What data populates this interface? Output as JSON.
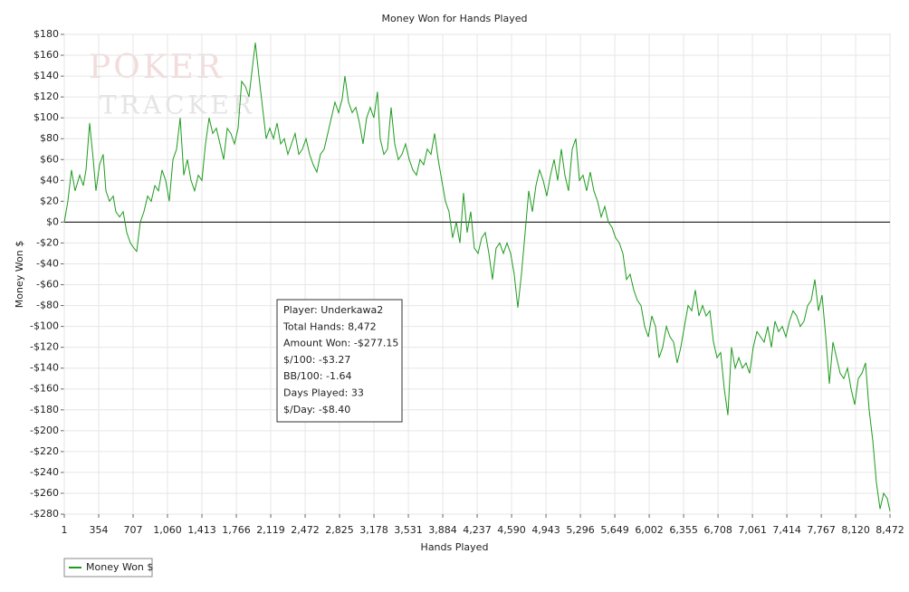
{
  "chart_data": {
    "type": "line",
    "title": "Money Won for Hands Played",
    "xlabel": "Hands Played",
    "ylabel": "Money Won $",
    "watermark": [
      "POKER",
      "TRACKER"
    ],
    "info_box": [
      "Player: Underkawa2",
      "Total Hands: 8,472",
      "Amount Won: -$277.15",
      "$/100: -$3.27",
      "BB/100: -1.64",
      "Days Played: 33",
      "$/Day: -$8.40"
    ],
    "legend": "bottom-left",
    "grid": true,
    "zero_line": true,
    "xlim": [
      1,
      8472
    ],
    "ylim": [
      -280,
      180
    ],
    "xticks": [
      1,
      354,
      707,
      {
        "value": 1060,
        "label": "1,060"
      },
      {
        "value": 1413,
        "label": "1,413"
      },
      {
        "value": 1766,
        "label": "1,766"
      },
      {
        "value": 2119,
        "label": "2,119"
      },
      {
        "value": 2472,
        "label": "2,472"
      },
      {
        "value": 2825,
        "label": "2,825"
      },
      {
        "value": 3178,
        "label": "3,178"
      },
      {
        "value": 3531,
        "label": "3,531"
      },
      {
        "value": 3884,
        "label": "3,884"
      },
      {
        "value": 4237,
        "label": "4,237"
      },
      {
        "value": 4590,
        "label": "4,590"
      },
      {
        "value": 4943,
        "label": "4,943"
      },
      {
        "value": 5296,
        "label": "5,296"
      },
      {
        "value": 5649,
        "label": "5,649"
      },
      {
        "value": 6002,
        "label": "6,002"
      },
      {
        "value": 6355,
        "label": "6,355"
      },
      {
        "value": 6708,
        "label": "6,708"
      },
      {
        "value": 7061,
        "label": "7,061"
      },
      {
        "value": 7414,
        "label": "7,414"
      },
      {
        "value": 7767,
        "label": "7,767"
      },
      {
        "value": 8120,
        "label": "8,120"
      },
      {
        "value": 8472,
        "label": "8,472"
      }
    ],
    "yticks": [
      {
        "value": 180,
        "label": "$180"
      },
      {
        "value": 160,
        "label": "$160"
      },
      {
        "value": 140,
        "label": "$140"
      },
      {
        "value": 120,
        "label": "$120"
      },
      {
        "value": 100,
        "label": "$100"
      },
      {
        "value": 80,
        "label": "$80"
      },
      {
        "value": 60,
        "label": "$60"
      },
      {
        "value": 40,
        "label": "$40"
      },
      {
        "value": 20,
        "label": "$20"
      },
      {
        "value": 0,
        "label": "$0"
      },
      {
        "value": -20,
        "label": "-$20"
      },
      {
        "value": -40,
        "label": "-$40"
      },
      {
        "value": -60,
        "label": "-$60"
      },
      {
        "value": -80,
        "label": "-$80"
      },
      {
        "value": -100,
        "label": "-$100"
      },
      {
        "value": -120,
        "label": "-$120"
      },
      {
        "value": -140,
        "label": "-$140"
      },
      {
        "value": -160,
        "label": "-$160"
      },
      {
        "value": -180,
        "label": "-$180"
      },
      {
        "value": -200,
        "label": "-$200"
      },
      {
        "value": -220,
        "label": "-$220"
      },
      {
        "value": -240,
        "label": "-$240"
      },
      {
        "value": -260,
        "label": "-$260"
      },
      {
        "value": -280,
        "label": "-$280"
      }
    ],
    "x": [
      1,
      38,
      75,
      112,
      159,
      196,
      224,
      261,
      298,
      326,
      363,
      400,
      428,
      465,
      503,
      530,
      568,
      605,
      642,
      679,
      716,
      744,
      781,
      818,
      856,
      893,
      930,
      967,
      1004,
      1041,
      1078,
      1116,
      1153,
      1190,
      1227,
      1264,
      1301,
      1338,
      1376,
      1413,
      1450,
      1487,
      1524,
      1561,
      1599,
      1636,
      1673,
      1710,
      1747,
      1784,
      1821,
      1859,
      1896,
      1933,
      1961,
      1998,
      2035,
      2072,
      2109,
      2147,
      2184,
      2221,
      2258,
      2295,
      2332,
      2369,
      2407,
      2444,
      2481,
      2518,
      2555,
      2592,
      2629,
      2667,
      2704,
      2741,
      2778,
      2815,
      2852,
      2880,
      2917,
      2955,
      2992,
      3029,
      3066,
      3103,
      3140,
      3177,
      3214,
      3242,
      3280,
      3317,
      3354,
      3391,
      3428,
      3465,
      3502,
      3540,
      3577,
      3614,
      3651,
      3688,
      3725,
      3763,
      3800,
      3837,
      3874,
      3911,
      3948,
      3985,
      4023,
      4060,
      4097,
      4134,
      4171,
      4208,
      4246,
      4283,
      4320,
      4357,
      4394,
      4431,
      4468,
      4506,
      4543,
      4580,
      4617,
      4654,
      4691,
      4729,
      4766,
      4803,
      4840,
      4877,
      4914,
      4951,
      4989,
      5026,
      5063,
      5100,
      5137,
      5174,
      5212,
      5249,
      5286,
      5323,
      5360,
      5397,
      5434,
      5472,
      5509,
      5546,
      5583,
      5620,
      5657,
      5695,
      5732,
      5769,
      5806,
      5843,
      5880,
      5918,
      5955,
      5992,
      6029,
      6066,
      6103,
      6140,
      6178,
      6215,
      6252,
      6289,
      6326,
      6363,
      6401,
      6438,
      6475,
      6512,
      6549,
      6586,
      6624,
      6661,
      6698,
      6735,
      6772,
      6809,
      6846,
      6884,
      6921,
      6958,
      6995,
      7032,
      7069,
      7107,
      7144,
      7181,
      7218,
      7255,
      7292,
      7330,
      7367,
      7404,
      7441,
      7478,
      7515,
      7552,
      7590,
      7627,
      7664,
      7701,
      7738,
      7775,
      7813,
      7850,
      7887,
      7924,
      7961,
      7998,
      8036,
      8073,
      8110,
      8147,
      8184,
      8221,
      8258,
      8296,
      8333,
      8370,
      8407,
      8444,
      8472
    ],
    "series": [
      {
        "name": "Money Won $",
        "color": "#1e9b1e",
        "values": [
          0,
          20,
          50,
          30,
          45,
          35,
          50,
          95,
          60,
          30,
          55,
          65,
          30,
          20,
          25,
          10,
          5,
          10,
          -10,
          -20,
          -25,
          -28,
          0,
          10,
          25,
          20,
          35,
          30,
          50,
          40,
          20,
          60,
          70,
          100,
          45,
          60,
          40,
          30,
          45,
          40,
          75,
          100,
          85,
          90,
          75,
          60,
          90,
          85,
          75,
          90,
          135,
          130,
          120,
          150,
          172,
          140,
          110,
          80,
          90,
          80,
          95,
          75,
          80,
          65,
          75,
          85,
          65,
          70,
          80,
          65,
          55,
          48,
          65,
          70,
          85,
          100,
          115,
          105,
          118,
          140,
          115,
          105,
          110,
          95,
          75,
          100,
          110,
          100,
          125,
          80,
          65,
          70,
          110,
          75,
          60,
          65,
          75,
          60,
          50,
          45,
          60,
          55,
          70,
          65,
          85,
          60,
          40,
          20,
          10,
          -15,
          0,
          -20,
          28,
          -10,
          10,
          -25,
          -30,
          -15,
          -10,
          -30,
          -55,
          -25,
          -20,
          -30,
          -20,
          -30,
          -50,
          -82,
          -50,
          -10,
          30,
          10,
          35,
          50,
          40,
          25,
          45,
          60,
          40,
          70,
          45,
          30,
          70,
          80,
          40,
          45,
          30,
          48,
          30,
          20,
          5,
          15,
          0,
          -5,
          -15,
          -20,
          -30,
          -55,
          -50,
          -65,
          -75,
          -80,
          -100,
          -110,
          -90,
          -100,
          -130,
          -120,
          -100,
          -110,
          -115,
          -135,
          -120,
          -100,
          -80,
          -85,
          -65,
          -90,
          -80,
          -90,
          -85,
          -115,
          -130,
          -125,
          -160,
          -185,
          -120,
          -140,
          -130,
          -140,
          -135,
          -145,
          -120,
          -105,
          -110,
          -115,
          -100,
          -120,
          -95,
          -105,
          -100,
          -110,
          -95,
          -85,
          -90,
          -100,
          -95,
          -80,
          -75,
          -55,
          -85,
          -70,
          -110,
          -155,
          -115,
          -130,
          -145,
          -150,
          -140,
          -160,
          -175,
          -150,
          -145,
          -135,
          -180,
          -210,
          -250,
          -275,
          -260,
          -265,
          -277.15
        ]
      }
    ]
  }
}
